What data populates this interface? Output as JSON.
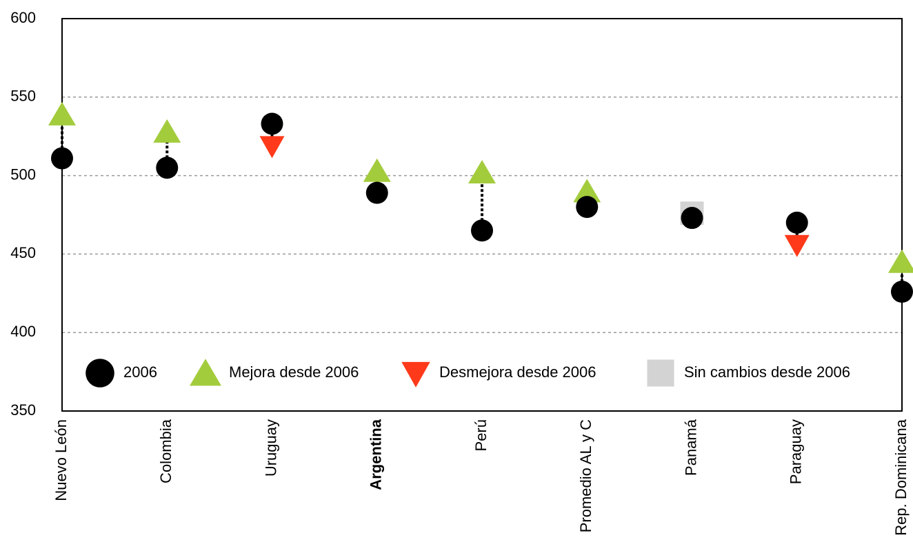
{
  "chart_data": {
    "type": "dot-change",
    "categories": [
      "Nuevo León",
      "Colombia",
      "Uruguay",
      "Argentina",
      "Perú",
      "Promedio AL y C",
      "Panamá",
      "Paraguay",
      "Rep. Dominicana"
    ],
    "bold_categories": [
      3
    ],
    "series": [
      {
        "name": "2006",
        "color": "#000000",
        "marker": "circle",
        "values": [
          511,
          505,
          533,
          489,
          465,
          480,
          473,
          470,
          426
        ]
      },
      {
        "name": "Mejora desde 2006",
        "color": "#a3cc3d",
        "marker": "triangle-up",
        "values": [
          539,
          528,
          null,
          503,
          502,
          490,
          null,
          null,
          445
        ]
      },
      {
        "name": "Desmejora desde 2006",
        "color": "#ff3a1a",
        "marker": "triangle-down",
        "values": [
          null,
          null,
          519,
          null,
          null,
          null,
          null,
          456,
          null
        ]
      },
      {
        "name": "Sin cambios desde 2006",
        "color": "#d3d3d3",
        "marker": "square",
        "values": [
          null,
          null,
          null,
          null,
          null,
          null,
          476,
          null,
          null
        ]
      }
    ],
    "ylim": [
      350,
      600
    ],
    "yticks": [
      350,
      400,
      450,
      500,
      550,
      600
    ],
    "grid": true
  }
}
